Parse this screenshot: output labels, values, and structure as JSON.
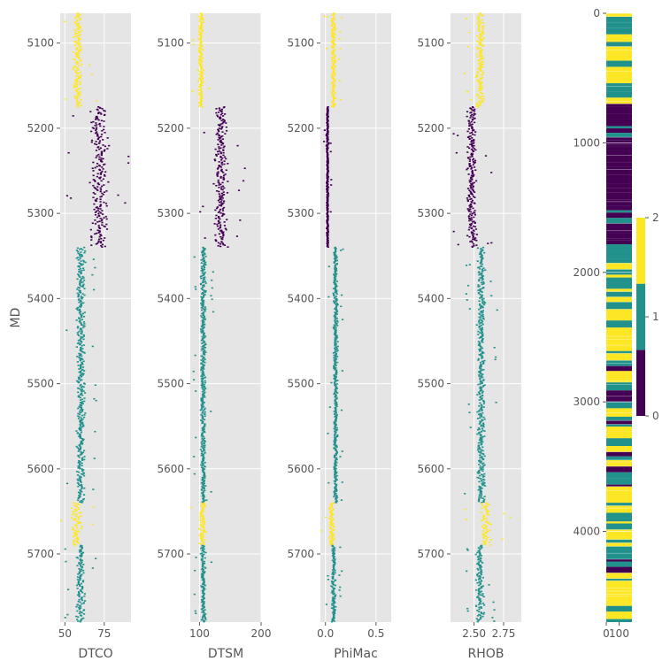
{
  "chart_data": [
    {
      "type": "scatter",
      "xlabel": "DTCO",
      "ylabel": "MD",
      "xlim": [
        47,
        92
      ],
      "ylim": [
        5780,
        5065
      ],
      "x_ticks": [
        {
          "value": 50,
          "label": "50"
        },
        {
          "value": 75,
          "label": "75"
        }
      ],
      "y_ticks": [
        {
          "value": 5100,
          "label": "5100"
        },
        {
          "value": 5200,
          "label": "5200"
        },
        {
          "value": 5300,
          "label": "5300"
        },
        {
          "value": 5400,
          "label": "5400"
        },
        {
          "value": 5500,
          "label": "5500"
        },
        {
          "value": 5600,
          "label": "5600"
        },
        {
          "value": 5700,
          "label": "5700"
        }
      ],
      "grid": true,
      "color_by": "class",
      "segments": [
        {
          "from": 5065,
          "to": 5175,
          "class": 2,
          "base": 58,
          "spread": 4
        },
        {
          "from": 5175,
          "to": 5340,
          "class": 0,
          "base": 72,
          "spread": 8
        },
        {
          "from": 5340,
          "to": 5640,
          "class": 1,
          "base": 60,
          "spread": 4
        },
        {
          "from": 5640,
          "to": 5690,
          "class": 2,
          "base": 57,
          "spread": 5
        },
        {
          "from": 5690,
          "to": 5780,
          "class": 1,
          "base": 60,
          "spread": 4
        }
      ]
    },
    {
      "type": "scatter",
      "xlabel": "DTSM",
      "xlim": [
        85,
        200
      ],
      "ylim": [
        5780,
        5065
      ],
      "x_ticks": [
        {
          "value": 100,
          "label": "100"
        },
        {
          "value": 200,
          "label": "200"
        }
      ],
      "grid": true,
      "color_by": "class",
      "segments": [
        {
          "from": 5065,
          "to": 5175,
          "class": 2,
          "base": 102,
          "spread": 6
        },
        {
          "from": 5175,
          "to": 5340,
          "class": 0,
          "base": 135,
          "spread": 15
        },
        {
          "from": 5340,
          "to": 5640,
          "class": 1,
          "base": 106,
          "spread": 6
        },
        {
          "from": 5640,
          "to": 5690,
          "class": 2,
          "base": 104,
          "spread": 8
        },
        {
          "from": 5690,
          "to": 5780,
          "class": 1,
          "base": 106,
          "spread": 6
        }
      ]
    },
    {
      "type": "scatter",
      "xlabel": "PhiMac",
      "xlim": [
        -0.05,
        0.65
      ],
      "ylim": [
        5780,
        5065
      ],
      "x_ticks": [
        {
          "value": 0.0,
          "label": "0.0"
        },
        {
          "value": 0.5,
          "label": "0.5"
        }
      ],
      "grid": true,
      "color_by": "class",
      "segments": [
        {
          "from": 5065,
          "to": 5175,
          "class": 2,
          "base": 0.08,
          "spread": 0.03
        },
        {
          "from": 5175,
          "to": 5340,
          "class": 0,
          "base": 0.02,
          "spread": 0.015
        },
        {
          "from": 5340,
          "to": 5640,
          "class": 1,
          "base": 0.1,
          "spread": 0.03
        },
        {
          "from": 5640,
          "to": 5690,
          "class": 2,
          "base": 0.06,
          "spread": 0.04
        },
        {
          "from": 5690,
          "to": 5780,
          "class": 1,
          "base": 0.08,
          "spread": 0.03
        }
      ]
    },
    {
      "type": "scatter",
      "xlabel": "RHOB",
      "xlim": [
        2.3,
        2.9
      ],
      "ylim": [
        5780,
        5065
      ],
      "x_ticks": [
        {
          "value": 2.5,
          "label": "2.50"
        },
        {
          "value": 2.75,
          "label": "2.75"
        }
      ],
      "grid": true,
      "color_by": "class",
      "segments": [
        {
          "from": 5065,
          "to": 5175,
          "class": 2,
          "base": 2.55,
          "spread": 0.05
        },
        {
          "from": 5175,
          "to": 5340,
          "class": 0,
          "base": 2.48,
          "spread": 0.06
        },
        {
          "from": 5340,
          "to": 5640,
          "class": 1,
          "base": 2.56,
          "spread": 0.05
        },
        {
          "from": 5640,
          "to": 5690,
          "class": 2,
          "base": 2.6,
          "spread": 0.07
        },
        {
          "from": 5690,
          "to": 5780,
          "class": 1,
          "base": 2.55,
          "spread": 0.05
        }
      ]
    },
    {
      "type": "heatmap",
      "xlim": [
        0,
        200
      ],
      "ylim": [
        4700,
        0
      ],
      "x_ticks": [
        {
          "value": 0,
          "label": "0"
        },
        {
          "value": 100,
          "label": "100"
        }
      ],
      "y_ticks": [
        {
          "value": 0,
          "label": "0"
        },
        {
          "value": 1000,
          "label": "1000"
        },
        {
          "value": 2000,
          "label": "2000"
        },
        {
          "value": 3000,
          "label": "3000"
        },
        {
          "value": 4000,
          "label": "4000"
        }
      ],
      "bands": [
        {
          "from": 0,
          "to": 700,
          "class": "mixed-12"
        },
        {
          "from": 700,
          "to": 1750,
          "class": "mostly-0"
        },
        {
          "from": 1750,
          "to": 2850,
          "class": "mixed-12"
        },
        {
          "from": 2850,
          "to": 3000,
          "class": "mostly-0"
        },
        {
          "from": 3000,
          "to": 4700,
          "class": "mixed-12"
        }
      ]
    }
  ],
  "colorbar": {
    "range": [
      0,
      2
    ],
    "ticks": [
      {
        "value": 0,
        "label": "0"
      },
      {
        "value": 1,
        "label": "1"
      },
      {
        "value": 2,
        "label": "2"
      }
    ],
    "colors": [
      "#440154",
      "#21918c",
      "#fde725"
    ]
  },
  "colors": {
    "class_0": "#440154",
    "class_1": "#21918c",
    "class_2": "#fde725",
    "panel_bg": "#e5e5e5",
    "grid": "#ffffff"
  }
}
